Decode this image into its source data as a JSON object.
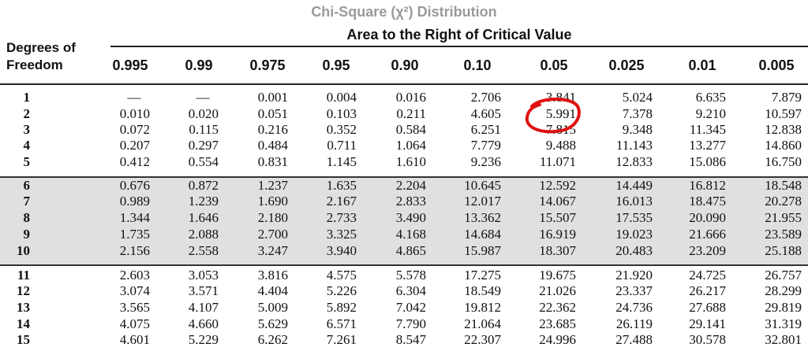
{
  "table": {
    "title": "Chi-Square (χ²) Distribution",
    "subtitle": "Area to the Right of Critical Value",
    "dof_header": [
      "Degrees of",
      "Freedom"
    ],
    "columns": [
      "0.995",
      "0.99",
      "0.975",
      "0.95",
      "0.90",
      "0.10",
      "0.05",
      "0.025",
      "0.01",
      "0.005"
    ],
    "rows": [
      {
        "df": "1",
        "values": [
          "—",
          "—",
          "0.001",
          "0.004",
          "0.016",
          "2.706",
          "3.841",
          "5.024",
          "6.635",
          "7.879"
        ]
      },
      {
        "df": "2",
        "values": [
          "0.010",
          "0.020",
          "0.051",
          "0.103",
          "0.211",
          "4.605",
          "5.991",
          "7.378",
          "9.210",
          "10.597"
        ]
      },
      {
        "df": "3",
        "values": [
          "0.072",
          "0.115",
          "0.216",
          "0.352",
          "0.584",
          "6.251",
          "7.815",
          "9.348",
          "11.345",
          "12.838"
        ]
      },
      {
        "df": "4",
        "values": [
          "0.207",
          "0.297",
          "0.484",
          "0.711",
          "1.064",
          "7.779",
          "9.488",
          "11.143",
          "13.277",
          "14.860"
        ]
      },
      {
        "df": "5",
        "values": [
          "0.412",
          "0.554",
          "0.831",
          "1.145",
          "1.610",
          "9.236",
          "11.071",
          "12.833",
          "15.086",
          "16.750"
        ]
      },
      {
        "df": "6",
        "values": [
          "0.676",
          "0.872",
          "1.237",
          "1.635",
          "2.204",
          "10.645",
          "12.592",
          "14.449",
          "16.812",
          "18.548"
        ]
      },
      {
        "df": "7",
        "values": [
          "0.989",
          "1.239",
          "1.690",
          "2.167",
          "2.833",
          "12.017",
          "14.067",
          "16.013",
          "18.475",
          "20.278"
        ]
      },
      {
        "df": "8",
        "values": [
          "1.344",
          "1.646",
          "2.180",
          "2.733",
          "3.490",
          "13.362",
          "15.507",
          "17.535",
          "20.090",
          "21.955"
        ]
      },
      {
        "df": "9",
        "values": [
          "1.735",
          "2.088",
          "2.700",
          "3.325",
          "4.168",
          "14.684",
          "16.919",
          "19.023",
          "21.666",
          "23.589"
        ]
      },
      {
        "df": "10",
        "values": [
          "2.156",
          "2.558",
          "3.247",
          "3.940",
          "4.865",
          "15.987",
          "18.307",
          "20.483",
          "23.209",
          "25.188"
        ]
      },
      {
        "df": "11",
        "values": [
          "2.603",
          "3.053",
          "3.816",
          "4.575",
          "5.578",
          "17.275",
          "19.675",
          "21.920",
          "24.725",
          "26.757"
        ]
      },
      {
        "df": "12",
        "values": [
          "3.074",
          "3.571",
          "4.404",
          "5.226",
          "6.304",
          "18.549",
          "21.026",
          "23.337",
          "26.217",
          "28.299"
        ]
      },
      {
        "df": "13",
        "values": [
          "3.565",
          "4.107",
          "5.009",
          "5.892",
          "7.042",
          "19.812",
          "22.362",
          "24.736",
          "27.688",
          "29.819"
        ]
      },
      {
        "df": "14",
        "values": [
          "4.075",
          "4.660",
          "5.629",
          "6.571",
          "7.790",
          "21.064",
          "23.685",
          "26.119",
          "29.141",
          "31.319"
        ]
      },
      {
        "df": "15",
        "values": [
          "4.601",
          "5.229",
          "6.262",
          "7.261",
          "8.547",
          "22.307",
          "24.996",
          "27.488",
          "30.578",
          "32.801"
        ]
      }
    ],
    "highlight": {
      "row": "2",
      "column": "0.05",
      "value": "5.991",
      "color": "#e01010"
    }
  },
  "colors": {
    "band_gray": "#e0e0e0",
    "title_gray": "#9a9a9a",
    "annotation_red": "#e01010"
  }
}
